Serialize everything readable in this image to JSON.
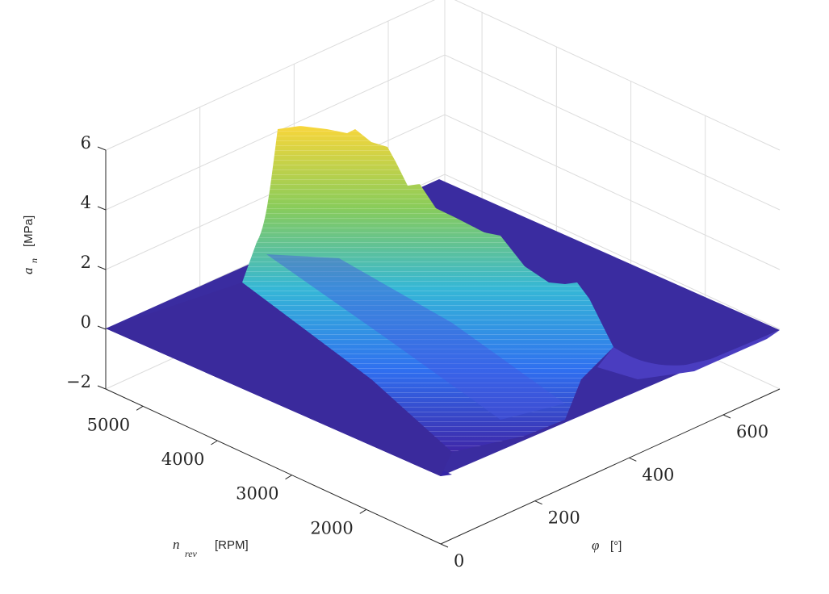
{
  "chart_data": {
    "type": "surface",
    "title": "",
    "x_axis": {
      "symbol": "φ",
      "unit": "[°]",
      "ticks": [
        0,
        200,
        400,
        600
      ],
      "range": [
        0,
        720
      ]
    },
    "y_axis": {
      "symbol": "n",
      "subscript": "rev",
      "unit": "[RPM]",
      "ticks": [
        2000,
        3000,
        4000,
        5000
      ],
      "range": [
        1000,
        5500
      ]
    },
    "z_axis": {
      "symbol": "a",
      "subscript": "n",
      "unit": "[MPa]",
      "ticks": [
        -2,
        0,
        2,
        4,
        6
      ],
      "tick_labels": [
        "−2",
        "0",
        "2",
        "4",
        "6"
      ],
      "range": [
        -2,
        6
      ]
    },
    "grid": true,
    "colormap": "parula",
    "colors": {
      "low": "#3e26a8",
      "mid": "#35b7d6",
      "high": "#f9d63a",
      "grid": "#dcdcdc",
      "axis": "#262626"
    },
    "surface_description_points": {
      "phi": [
        0,
        250,
        300,
        340,
        360,
        380,
        400,
        430,
        470,
        520,
        560,
        600,
        640,
        720
      ],
      "a_n_at_5000rpm": [
        0,
        0,
        0.3,
        1.2,
        5.6,
        6.2,
        5.2,
        4.5,
        3.2,
        1.8,
        0.4,
        -0.6,
        -0.3,
        0
      ]
    }
  }
}
